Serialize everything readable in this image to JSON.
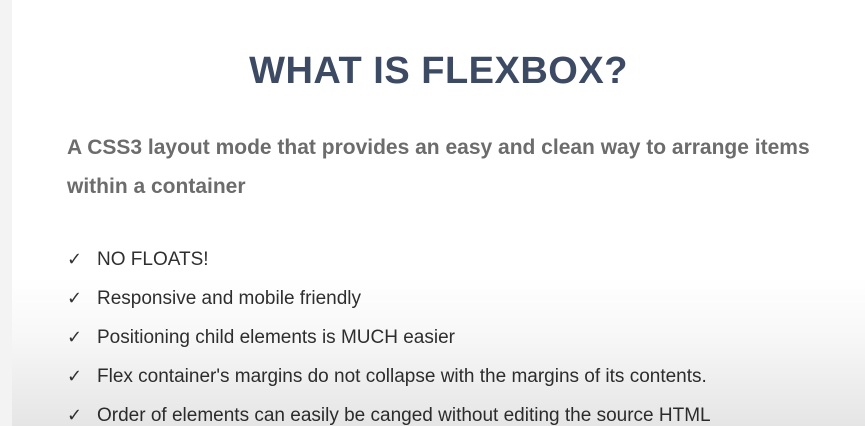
{
  "slide": {
    "title": "WHAT IS FLEXBOX?",
    "subtitle": "A CSS3 layout mode that provides an easy and clean way to arrange items within a container",
    "check_glyph": "✓",
    "bullets": [
      "NO FLOATS!",
      "Responsive and mobile friendly",
      "Positioning child elements is MUCH easier",
      "Flex container's margins do not collapse with the margins of its contents.",
      "Order of elements can easily be canged without editing the source HTML"
    ]
  }
}
